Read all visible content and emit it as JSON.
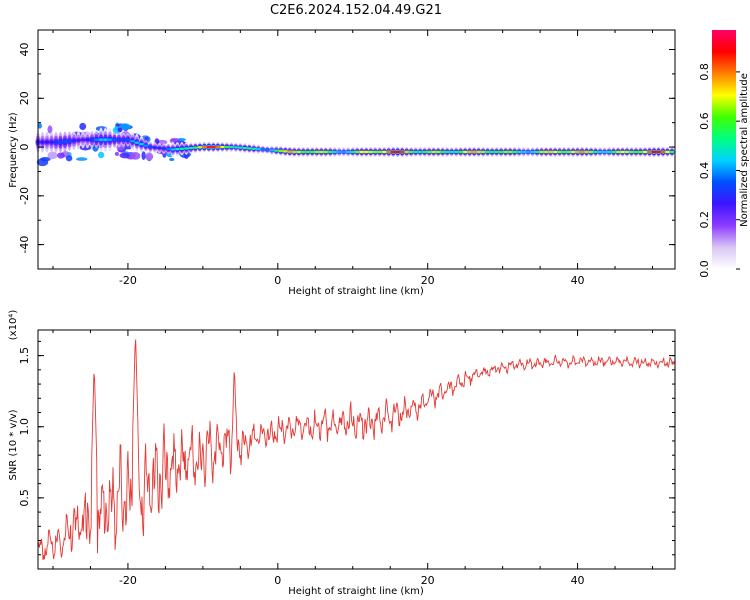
{
  "title": "C2E6.2024.152.04.49.G21",
  "chart_data": [
    {
      "type": "heatmap",
      "xlabel": "Height of straight line (km)",
      "ylabel": "Frequency (Hz)",
      "xlim": [
        -32,
        53
      ],
      "ylim": [
        -50,
        48
      ],
      "xticks": [
        -20,
        0,
        20,
        40
      ],
      "xtick_labels": [
        "-20",
        "0",
        "20",
        "40"
      ],
      "yticks": [
        -40,
        -20,
        0,
        20,
        40
      ],
      "ytick_labels": [
        "-40",
        "-20",
        "0",
        "20",
        "40"
      ],
      "colorbar": {
        "label": "Normalized spectral amplitude",
        "range": [
          0.0,
          0.97
        ],
        "ticks": [
          0.0,
          0.2,
          0.4,
          0.6,
          0.8
        ],
        "tick_labels": [
          "0.0",
          "0.2",
          "0.4",
          "0.6",
          "0.8"
        ],
        "colormap": [
          "#ffffff",
          "#d9c6f5",
          "#8c3cff",
          "#3c14ff",
          "#0050ff",
          "#00d2ff",
          "#00ff80",
          "#40ff00",
          "#ffff00",
          "#ff8000",
          "#ff0000",
          "#ff0066"
        ]
      },
      "ridge": {
        "x": [
          -32,
          -29,
          -26,
          -23,
          -20,
          -17,
          -14,
          -10,
          -6,
          -2,
          2,
          6,
          10,
          15,
          20,
          26,
          32,
          38,
          44,
          50,
          53
        ],
        "y": [
          2,
          2,
          3,
          3,
          3,
          0,
          -1,
          0,
          0,
          -1,
          -2,
          -2,
          -2,
          -2,
          -2,
          -2,
          -2,
          -2,
          -2,
          -2,
          -2
        ],
        "amplitude": [
          0.35,
          0.45,
          0.5,
          0.5,
          0.45,
          0.55,
          0.6,
          0.95,
          0.8,
          0.7,
          0.85,
          0.8,
          0.85,
          0.95,
          0.95,
          0.8,
          0.85,
          0.85,
          0.9,
          0.95,
          0.85
        ],
        "spread": [
          6,
          6,
          5,
          5,
          4,
          3,
          3,
          2,
          2,
          2,
          2,
          2,
          2,
          2,
          2,
          2,
          2,
          2,
          2,
          2,
          2
        ]
      }
    },
    {
      "type": "line",
      "xlabel": "Height of straight line (km)",
      "ylabel": "SNR (10 * v/v)",
      "y_scale_label": "(x10⁴)",
      "xlim": [
        -32,
        53
      ],
      "ylim": [
        0.0,
        1.68
      ],
      "xticks": [
        -20,
        0,
        20,
        40
      ],
      "xtick_labels": [
        "-20",
        "0",
        "20",
        "40"
      ],
      "yticks": [
        0.5,
        1.0,
        1.5
      ],
      "ytick_labels": [
        "0.5",
        "1.0",
        "1.5"
      ],
      "color": "#e53935",
      "envelope": {
        "x": [
          -32,
          -28,
          -25,
          -22,
          -19,
          -16,
          -13,
          -10,
          -7,
          -4,
          -1,
          2,
          5,
          8,
          11,
          14,
          17,
          20,
          23,
          27,
          31,
          35,
          40,
          45,
          50,
          53
        ],
        "base": [
          0.12,
          0.25,
          0.4,
          0.45,
          0.55,
          0.65,
          0.75,
          0.78,
          0.85,
          0.9,
          0.95,
          1.0,
          1.0,
          1.02,
          1.02,
          1.05,
          1.1,
          1.18,
          1.28,
          1.38,
          1.43,
          1.45,
          1.46,
          1.46,
          1.45,
          1.45
        ],
        "amp": [
          0.1,
          0.15,
          0.35,
          0.35,
          0.5,
          0.3,
          0.25,
          0.25,
          0.3,
          0.1,
          0.1,
          0.1,
          0.12,
          0.12,
          0.12,
          0.12,
          0.1,
          0.08,
          0.07,
          0.05,
          0.04,
          0.04,
          0.04,
          0.04,
          0.04,
          0.04
        ]
      },
      "peaks": [
        {
          "x": -24.5,
          "y": 1.45
        },
        {
          "x": -19,
          "y": 1.68
        },
        {
          "x": -5.8,
          "y": 1.46
        }
      ]
    }
  ]
}
